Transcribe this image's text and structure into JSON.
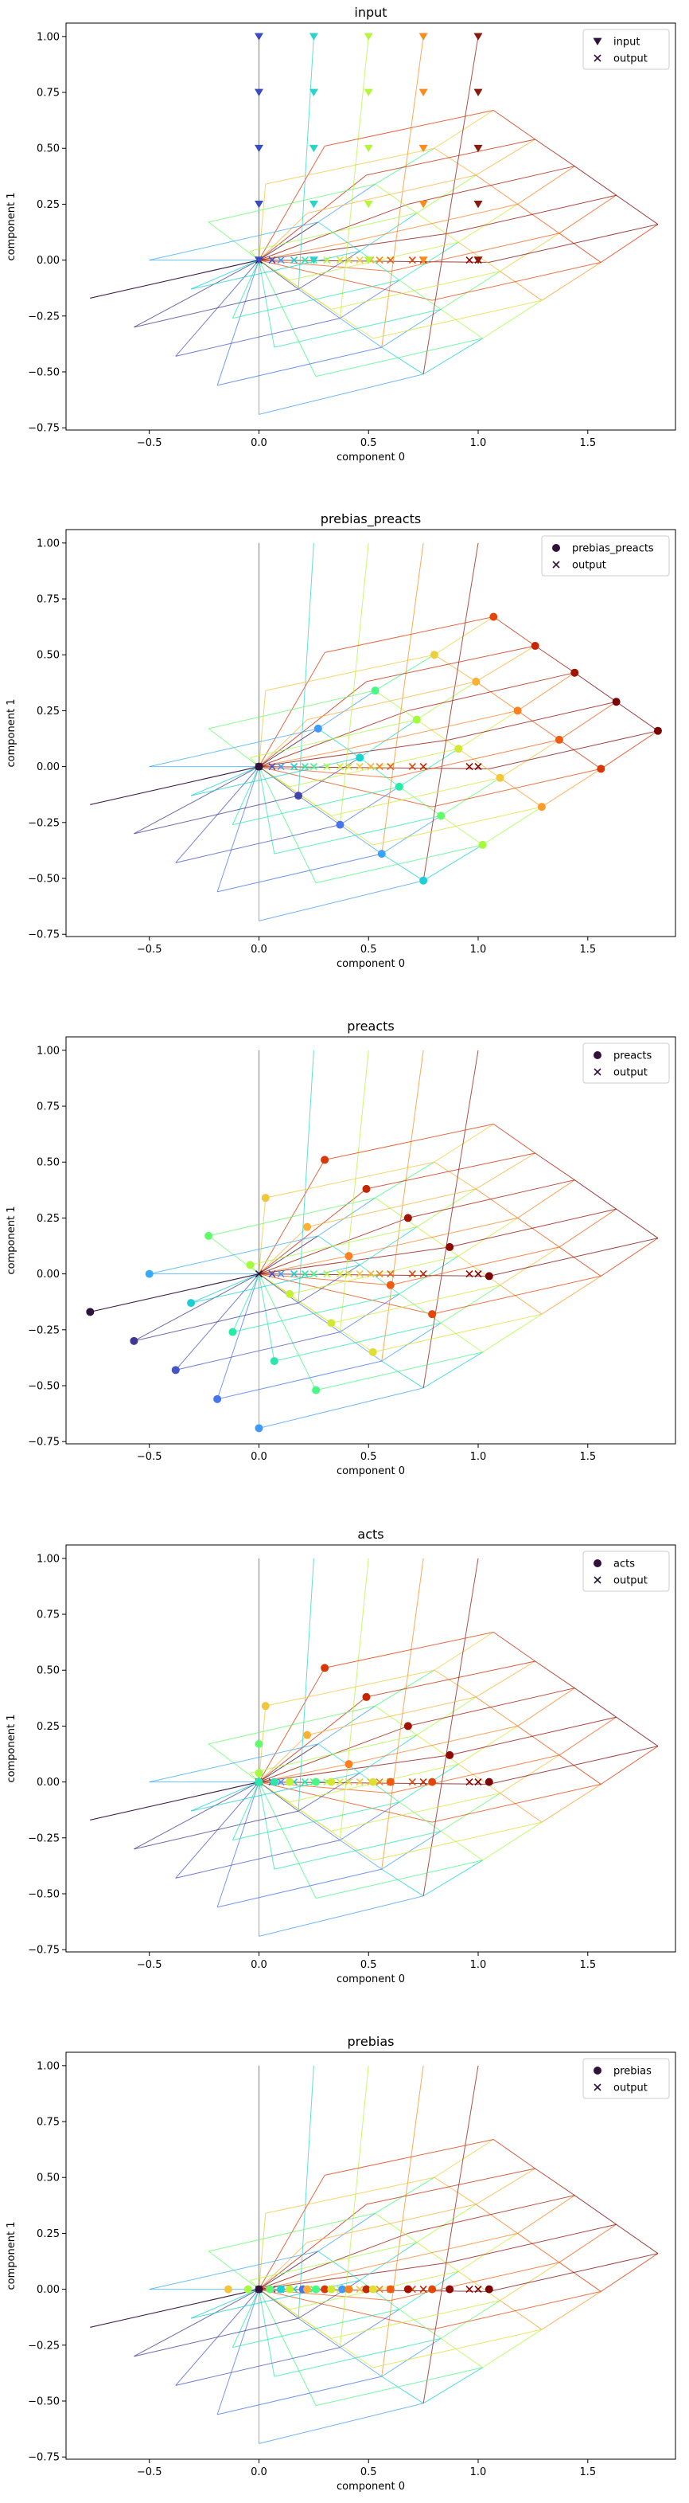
{
  "chart_data": [
    {
      "type": "scatter",
      "title": "input",
      "xlabel": "component 0",
      "ylabel": "component 1",
      "xlim": [
        -0.88,
        1.9
      ],
      "ylim": [
        -0.76,
        1.06
      ],
      "xticks": [
        -0.5,
        0.0,
        0.5,
        1.0,
        1.5
      ],
      "yticks": [
        -0.75,
        -0.5,
        -0.25,
        0.0,
        0.25,
        0.5,
        0.75,
        1.0
      ],
      "xtick_labels": [
        "−0.5",
        "0.0",
        "0.5",
        "1.0",
        "1.5"
      ],
      "ytick_labels": [
        "−0.75",
        "−0.50",
        "−0.25",
        "0.00",
        "0.25",
        "0.50",
        "0.75",
        "1.00"
      ],
      "marker": "triangle",
      "legend": {
        "position": "upper right",
        "entries": [
          "input",
          "output"
        ]
      }
    },
    {
      "type": "scatter",
      "title": "prebias_preacts",
      "xlabel": "component 0",
      "ylabel": "component 1",
      "xlim": [
        -0.88,
        1.9
      ],
      "ylim": [
        -0.76,
        1.06
      ],
      "xticks": [
        -0.5,
        0.0,
        0.5,
        1.0,
        1.5
      ],
      "yticks": [
        -0.75,
        -0.5,
        -0.25,
        0.0,
        0.25,
        0.5,
        0.75,
        1.0
      ],
      "xtick_labels": [
        "−0.5",
        "0.0",
        "0.5",
        "1.0",
        "1.5"
      ],
      "ytick_labels": [
        "−0.75",
        "−0.50",
        "−0.25",
        "0.00",
        "0.25",
        "0.50",
        "0.75",
        "1.00"
      ],
      "marker": "circle",
      "legend": {
        "position": "upper right",
        "entries": [
          "prebias_preacts",
          "output"
        ]
      }
    },
    {
      "type": "scatter",
      "title": "preacts",
      "xlabel": "component 0",
      "ylabel": "component 1",
      "xlim": [
        -0.88,
        1.9
      ],
      "ylim": [
        -0.76,
        1.06
      ],
      "xticks": [
        -0.5,
        0.0,
        0.5,
        1.0,
        1.5
      ],
      "yticks": [
        -0.75,
        -0.5,
        -0.25,
        0.0,
        0.25,
        0.5,
        0.75,
        1.0
      ],
      "xtick_labels": [
        "−0.5",
        "0.0",
        "0.5",
        "1.0",
        "1.5"
      ],
      "ytick_labels": [
        "−0.75",
        "−0.50",
        "−0.25",
        "0.00",
        "0.25",
        "0.50",
        "0.75",
        "1.00"
      ],
      "marker": "circle",
      "legend": {
        "position": "upper right",
        "entries": [
          "preacts",
          "output"
        ]
      }
    },
    {
      "type": "scatter",
      "title": "acts",
      "xlabel": "component 0",
      "ylabel": "component 1",
      "xlim": [
        -0.88,
        1.9
      ],
      "ylim": [
        -0.76,
        1.06
      ],
      "xticks": [
        -0.5,
        0.0,
        0.5,
        1.0,
        1.5
      ],
      "yticks": [
        -0.75,
        -0.5,
        -0.25,
        0.0,
        0.25,
        0.5,
        0.75,
        1.0
      ],
      "xtick_labels": [
        "−0.5",
        "0.0",
        "0.5",
        "1.0",
        "1.5"
      ],
      "ytick_labels": [
        "−0.75",
        "−0.50",
        "−0.25",
        "0.00",
        "0.25",
        "0.50",
        "0.75",
        "1.00"
      ],
      "marker": "circle",
      "legend": {
        "position": "upper right",
        "entries": [
          "acts",
          "output"
        ]
      }
    },
    {
      "type": "scatter",
      "title": "prebias",
      "xlabel": "component 0",
      "ylabel": "component 1",
      "xlim": [
        -0.88,
        1.9
      ],
      "ylim": [
        -0.76,
        1.06
      ],
      "xticks": [
        -0.5,
        0.0,
        0.5,
        1.0,
        1.5
      ],
      "yticks": [
        -0.75,
        -0.5,
        -0.25,
        0.0,
        0.25,
        0.5,
        0.75,
        1.0
      ],
      "xtick_labels": [
        "−0.5",
        "0.0",
        "0.5",
        "1.0",
        "1.5"
      ],
      "ytick_labels": [
        "−0.75",
        "−0.50",
        "−0.25",
        "0.00",
        "0.25",
        "0.50",
        "0.75",
        "1.00"
      ],
      "marker": "circle",
      "legend": {
        "position": "upper right",
        "entries": [
          "prebias",
          "output"
        ]
      }
    }
  ],
  "series": {
    "input": [
      {
        "x": 0.0,
        "y": 1.0,
        "color": "#3b4cc0"
      },
      {
        "x": 0.25,
        "y": 1.0,
        "color": "#2ad4c8"
      },
      {
        "x": 0.5,
        "y": 1.0,
        "color": "#b6f53c"
      },
      {
        "x": 0.75,
        "y": 1.0,
        "color": "#fa8c1e"
      },
      {
        "x": 1.0,
        "y": 1.0,
        "color": "#8b1a0e"
      },
      {
        "x": 0.0,
        "y": 0.75,
        "color": "#3b4cc0"
      },
      {
        "x": 0.25,
        "y": 0.75,
        "color": "#2ad4c8"
      },
      {
        "x": 0.5,
        "y": 0.75,
        "color": "#b6f53c"
      },
      {
        "x": 0.75,
        "y": 0.75,
        "color": "#fa8c1e"
      },
      {
        "x": 1.0,
        "y": 0.75,
        "color": "#8b1a0e"
      },
      {
        "x": 0.0,
        "y": 0.5,
        "color": "#3b4cc0"
      },
      {
        "x": 0.25,
        "y": 0.5,
        "color": "#2ad4c8"
      },
      {
        "x": 0.5,
        "y": 0.5,
        "color": "#b6f53c"
      },
      {
        "x": 0.75,
        "y": 0.5,
        "color": "#fa8c1e"
      },
      {
        "x": 1.0,
        "y": 0.5,
        "color": "#8b1a0e"
      },
      {
        "x": 0.0,
        "y": 0.25,
        "color": "#3b4cc0"
      },
      {
        "x": 0.25,
        "y": 0.25,
        "color": "#2ad4c8"
      },
      {
        "x": 0.5,
        "y": 0.25,
        "color": "#b6f53c"
      },
      {
        "x": 0.75,
        "y": 0.25,
        "color": "#fa8c1e"
      },
      {
        "x": 1.0,
        "y": 0.25,
        "color": "#8b1a0e"
      },
      {
        "x": 0.0,
        "y": 0.0,
        "color": "#3b4cc0"
      },
      {
        "x": 0.25,
        "y": 0.0,
        "color": "#2ad4c8"
      },
      {
        "x": 0.5,
        "y": 0.0,
        "color": "#b6f53c"
      },
      {
        "x": 0.75,
        "y": 0.0,
        "color": "#fa8c1e"
      },
      {
        "x": 1.0,
        "y": 0.0,
        "color": "#8b1a0e"
      }
    ],
    "prebias_preacts": [
      {
        "x": 0.0,
        "y": 0.0,
        "color": "#30123b"
      },
      {
        "x": 0.18,
        "y": -0.13,
        "color": "#4145ab"
      },
      {
        "x": 0.37,
        "y": -0.26,
        "color": "#4675ed"
      },
      {
        "x": 0.56,
        "y": -0.39,
        "color": "#39a2fc"
      },
      {
        "x": 0.75,
        "y": -0.51,
        "color": "#1bcfd4"
      },
      {
        "x": 0.27,
        "y": 0.17,
        "color": "#3e9bfe"
      },
      {
        "x": 0.46,
        "y": 0.04,
        "color": "#18d6cb"
      },
      {
        "x": 0.64,
        "y": -0.09,
        "color": "#24eca6"
      },
      {
        "x": 0.83,
        "y": -0.22,
        "color": "#61fc6c"
      },
      {
        "x": 1.02,
        "y": -0.35,
        "color": "#a4fc3c"
      },
      {
        "x": 0.53,
        "y": 0.34,
        "color": "#46f884"
      },
      {
        "x": 0.72,
        "y": 0.21,
        "color": "#a2fc3c"
      },
      {
        "x": 0.91,
        "y": 0.08,
        "color": "#d1e935"
      },
      {
        "x": 1.1,
        "y": -0.05,
        "color": "#f3c63a"
      },
      {
        "x": 1.29,
        "y": -0.18,
        "color": "#fe9b2d"
      },
      {
        "x": 0.8,
        "y": 0.5,
        "color": "#eecf3a"
      },
      {
        "x": 0.99,
        "y": 0.38,
        "color": "#fcb036"
      },
      {
        "x": 1.18,
        "y": 0.25,
        "color": "#fb8022"
      },
      {
        "x": 1.37,
        "y": 0.12,
        "color": "#f05b12"
      },
      {
        "x": 1.56,
        "y": -0.01,
        "color": "#d93806"
      },
      {
        "x": 1.07,
        "y": 0.67,
        "color": "#e4460a"
      },
      {
        "x": 1.26,
        "y": 0.54,
        "color": "#c42503"
      },
      {
        "x": 1.44,
        "y": 0.42,
        "color": "#a11201"
      },
      {
        "x": 1.63,
        "y": 0.29,
        "color": "#7a0403"
      },
      {
        "x": 1.82,
        "y": 0.16,
        "color": "#7a0403"
      }
    ],
    "preacts": [
      {
        "x": -0.77,
        "y": -0.17,
        "color": "#30123b"
      },
      {
        "x": -0.57,
        "y": -0.3,
        "color": "#3e3891"
      },
      {
        "x": -0.38,
        "y": -0.43,
        "color": "#4454c4"
      },
      {
        "x": -0.19,
        "y": -0.56,
        "color": "#4676ee"
      },
      {
        "x": 0.0,
        "y": -0.69,
        "color": "#3e9bfe"
      },
      {
        "x": -0.5,
        "y": 0.0,
        "color": "#36aaf9"
      },
      {
        "x": -0.31,
        "y": -0.13,
        "color": "#1bcfd4"
      },
      {
        "x": -0.12,
        "y": -0.26,
        "color": "#24eca6"
      },
      {
        "x": 0.07,
        "y": -0.39,
        "color": "#2ee5ae"
      },
      {
        "x": 0.26,
        "y": -0.52,
        "color": "#46f884"
      },
      {
        "x": -0.23,
        "y": 0.17,
        "color": "#61fc6c"
      },
      {
        "x": -0.04,
        "y": 0.04,
        "color": "#a4fc3c"
      },
      {
        "x": 0.14,
        "y": -0.09,
        "color": "#c1f334"
      },
      {
        "x": 0.33,
        "y": -0.22,
        "color": "#d1e935"
      },
      {
        "x": 0.52,
        "y": -0.35,
        "color": "#e1dd37"
      },
      {
        "x": 0.03,
        "y": 0.34,
        "color": "#f3c63a"
      },
      {
        "x": 0.22,
        "y": 0.21,
        "color": "#fcb036"
      },
      {
        "x": 0.41,
        "y": 0.08,
        "color": "#fb8022"
      },
      {
        "x": 0.6,
        "y": -0.05,
        "color": "#f05b12"
      },
      {
        "x": 0.79,
        "y": -0.18,
        "color": "#e4460a"
      },
      {
        "x": 0.3,
        "y": 0.51,
        "color": "#d93806"
      },
      {
        "x": 0.49,
        "y": 0.38,
        "color": "#c42503"
      },
      {
        "x": 0.68,
        "y": 0.25,
        "color": "#a11201"
      },
      {
        "x": 0.87,
        "y": 0.12,
        "color": "#8f0a01"
      },
      {
        "x": 1.05,
        "y": -0.01,
        "color": "#7a0403"
      }
    ],
    "acts": [
      {
        "x": 0.0,
        "y": 0.0,
        "color": "#30123b"
      },
      {
        "x": 0.0,
        "y": 0.0,
        "color": "#3e3891"
      },
      {
        "x": 0.0,
        "y": 0.0,
        "color": "#4454c4"
      },
      {
        "x": 0.0,
        "y": 0.0,
        "color": "#4676ee"
      },
      {
        "x": 0.0,
        "y": 0.0,
        "color": "#3e9bfe"
      },
      {
        "x": 0.0,
        "y": 0.0,
        "color": "#36aaf9"
      },
      {
        "x": 0.0,
        "y": 0.0,
        "color": "#1bcfd4"
      },
      {
        "x": 0.0,
        "y": 0.0,
        "color": "#24eca6"
      },
      {
        "x": 0.07,
        "y": 0.0,
        "color": "#2ee5ae"
      },
      {
        "x": 0.26,
        "y": 0.0,
        "color": "#46f884"
      },
      {
        "x": 0.0,
        "y": 0.17,
        "color": "#61fc6c"
      },
      {
        "x": 0.0,
        "y": 0.04,
        "color": "#a4fc3c"
      },
      {
        "x": 0.14,
        "y": 0.0,
        "color": "#c1f334"
      },
      {
        "x": 0.33,
        "y": 0.0,
        "color": "#d1e935"
      },
      {
        "x": 0.52,
        "y": 0.0,
        "color": "#e1dd37"
      },
      {
        "x": 0.03,
        "y": 0.34,
        "color": "#f3c63a"
      },
      {
        "x": 0.22,
        "y": 0.21,
        "color": "#fcb036"
      },
      {
        "x": 0.41,
        "y": 0.08,
        "color": "#fb8022"
      },
      {
        "x": 0.6,
        "y": 0.0,
        "color": "#f05b12"
      },
      {
        "x": 0.79,
        "y": 0.0,
        "color": "#e4460a"
      },
      {
        "x": 0.3,
        "y": 0.51,
        "color": "#d93806"
      },
      {
        "x": 0.49,
        "y": 0.38,
        "color": "#c42503"
      },
      {
        "x": 0.68,
        "y": 0.25,
        "color": "#a11201"
      },
      {
        "x": 0.87,
        "y": 0.12,
        "color": "#8f0a01"
      },
      {
        "x": 1.05,
        "y": 0.0,
        "color": "#7a0403"
      }
    ],
    "prebias": [
      {
        "x": -0.14,
        "y": 0.0,
        "color": "#f3c63a"
      },
      {
        "x": -0.05,
        "y": 0.0,
        "color": "#a4fc3c"
      },
      {
        "x": 0.0,
        "y": 0.0,
        "color": "#30123b"
      },
      {
        "x": 0.05,
        "y": 0.0,
        "color": "#61fc6c"
      },
      {
        "x": 0.1,
        "y": 0.0,
        "color": "#1bcfd4"
      },
      {
        "x": 0.14,
        "y": 0.0,
        "color": "#c1f334"
      },
      {
        "x": 0.2,
        "y": 0.0,
        "color": "#4676ee"
      },
      {
        "x": 0.22,
        "y": 0.0,
        "color": "#fcb036"
      },
      {
        "x": 0.26,
        "y": 0.0,
        "color": "#46f884"
      },
      {
        "x": 0.3,
        "y": 0.0,
        "color": "#d93806"
      },
      {
        "x": 0.33,
        "y": 0.0,
        "color": "#d1e935"
      },
      {
        "x": 0.38,
        "y": 0.0,
        "color": "#3e9bfe"
      },
      {
        "x": 0.41,
        "y": 0.0,
        "color": "#fb8022"
      },
      {
        "x": 0.49,
        "y": 0.0,
        "color": "#c42503"
      },
      {
        "x": 0.52,
        "y": 0.0,
        "color": "#e1dd37"
      },
      {
        "x": 0.6,
        "y": 0.0,
        "color": "#f05b12"
      },
      {
        "x": 0.68,
        "y": 0.0,
        "color": "#a11201"
      },
      {
        "x": 0.79,
        "y": 0.0,
        "color": "#e4460a"
      },
      {
        "x": 0.87,
        "y": 0.0,
        "color": "#8f0a01"
      },
      {
        "x": 1.05,
        "y": 0.0,
        "color": "#7a0403"
      }
    ],
    "output": [
      {
        "x": 0.0,
        "y": 0.0,
        "color": "#30123b"
      },
      {
        "x": 0.06,
        "y": 0.0,
        "color": "#4454c4"
      },
      {
        "x": 0.1,
        "y": 0.0,
        "color": "#3e9bfe"
      },
      {
        "x": 0.16,
        "y": 0.0,
        "color": "#1bcfd4"
      },
      {
        "x": 0.21,
        "y": 0.0,
        "color": "#24eca6"
      },
      {
        "x": 0.25,
        "y": 0.0,
        "color": "#46f884"
      },
      {
        "x": 0.31,
        "y": 0.0,
        "color": "#a4fc3c"
      },
      {
        "x": 0.37,
        "y": 0.0,
        "color": "#d1e935"
      },
      {
        "x": 0.41,
        "y": 0.0,
        "color": "#e1dd37"
      },
      {
        "x": 0.46,
        "y": 0.0,
        "color": "#f3c63a"
      },
      {
        "x": 0.51,
        "y": 0.0,
        "color": "#fcb036"
      },
      {
        "x": 0.55,
        "y": 0.0,
        "color": "#fb8022"
      },
      {
        "x": 0.6,
        "y": 0.0,
        "color": "#f05b12"
      },
      {
        "x": 0.7,
        "y": 0.0,
        "color": "#e4460a"
      },
      {
        "x": 0.75,
        "y": 0.0,
        "color": "#c42503"
      },
      {
        "x": 0.96,
        "y": 0.0,
        "color": "#8f0a01"
      },
      {
        "x": 1.0,
        "y": 0.0,
        "color": "#7a0403"
      }
    ],
    "tracer_colors": [
      "#30123b",
      "#4676ee",
      "#1bcfd4",
      "#61fc6c",
      "#d1e935",
      "#fcb036",
      "#f05b12",
      "#c42503",
      "#7a0403"
    ],
    "legend_marker_color": "#30123b"
  },
  "colors": {
    "background": "#ffffff",
    "axes": "#000000",
    "output_marker": "#30123b"
  }
}
